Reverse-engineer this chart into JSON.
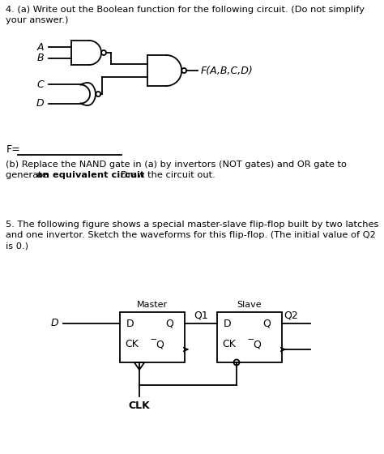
{
  "bg_color": "#ffffff",
  "line_color": "#000000",
  "text_color": "#000000",
  "q4_line1": "4. (a) Write out the Boolean function for the following circuit. (Do not simplify",
  "q4_line2": "your answer.)",
  "label_A": "A",
  "label_B": "B",
  "label_C": "C",
  "label_D": "D",
  "label_FABCD": "F(A,B,C,D)",
  "label_F": "F=",
  "partb_line1": "(b) Replace the NAND gate in (a) by invertors (NOT gates) and OR gate to",
  "partb_line2a": "generate ",
  "partb_line2b": "an equivalent circuit",
  "partb_line2c": ".  Draw the circuit out.",
  "q5_line1": "5. The following figure shows a special master-slave flip-flop built by two latches",
  "q5_line2": "and one invertor. Sketch the waveforms for this flip-flop. (The initial value of Q2",
  "q5_line3": "is 0.)",
  "label_Master": "Master",
  "label_Slave": "Slave",
  "label_Q1": "Q1",
  "label_Q2": "Q2",
  "label_D_ff": "D",
  "label_CLK": "CLK",
  "ff_inner": [
    "D",
    "Q",
    "CK Q",
    "D",
    "Q",
    "CK Q"
  ]
}
